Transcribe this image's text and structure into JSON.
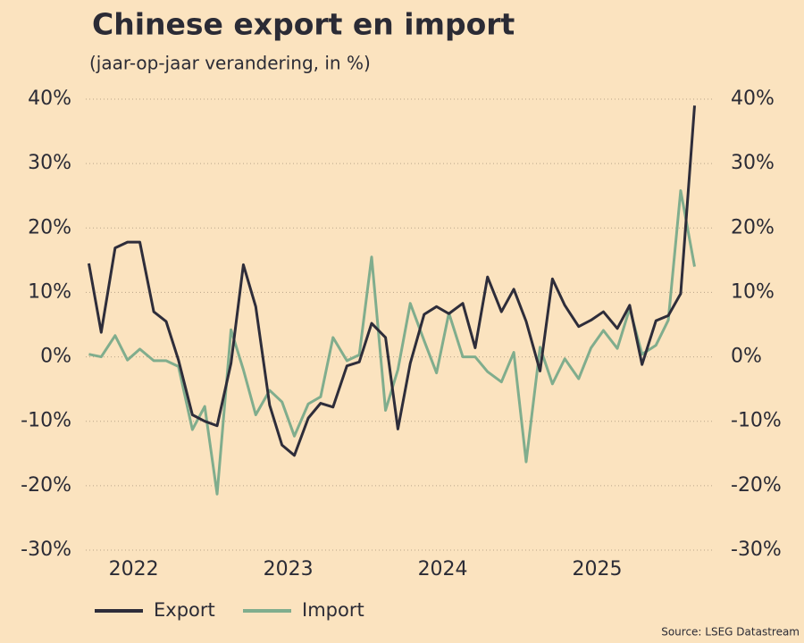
{
  "chart_data": {
    "type": "line",
    "title": "Chinese export en import",
    "subtitle": "(jaar-op-jaar verandering, in %)",
    "source": "Source: LSEG Datastream",
    "x": [
      2022.21,
      2022.29,
      2022.38,
      2022.46,
      2022.54,
      2022.63,
      2022.71,
      2022.79,
      2022.88,
      2022.96,
      2023.04,
      2023.13,
      2023.21,
      2023.29,
      2023.38,
      2023.46,
      2023.54,
      2023.63,
      2023.71,
      2023.79,
      2023.88,
      2023.96,
      2024.04,
      2024.13,
      2024.21,
      2024.29,
      2024.38,
      2024.46,
      2024.54,
      2024.63,
      2024.71,
      2024.79,
      2024.88,
      2024.96,
      2025.04,
      2025.13,
      2025.21,
      2025.29,
      2025.38,
      2025.46,
      2025.54,
      2025.63,
      2025.71,
      2025.79,
      2025.88,
      2025.96,
      2026.04,
      2026.13
    ],
    "series": [
      {
        "name": "Export",
        "color": "#2e2d3a",
        "values": [
          14.5,
          3.8,
          16.9,
          17.8,
          17.8,
          7,
          5.5,
          -0.5,
          -9,
          -10,
          -10.7,
          -1,
          14.3,
          7.8,
          -7.5,
          -13.7,
          -15.3,
          -9.5,
          -7.2,
          -7.8,
          -1.4,
          -0.8,
          5.2,
          3,
          -11.2,
          -1,
          6.6,
          7.8,
          6.7,
          8.3,
          1.4,
          12.4,
          7,
          10.5,
          5.5,
          -2.2,
          12.1,
          8,
          4.7,
          5.7,
          7,
          4.4,
          8,
          -1.2,
          5.6,
          6.4,
          9.8,
          39
        ]
      },
      {
        "name": "Import",
        "color": "#80ad8d",
        "values": [
          0.4,
          0,
          3.3,
          -0.5,
          1.2,
          -0.6,
          -0.6,
          -1.5,
          -11.3,
          -7.7,
          -21.3,
          4.2,
          -2,
          -9,
          -5.2,
          -7,
          -12.3,
          -7.3,
          -6.2,
          3,
          -0.6,
          0.3,
          15.5,
          -8.3,
          -2,
          8.3,
          2.5,
          -2.5,
          6.8,
          0,
          0,
          -2.3,
          -3.9,
          0.7,
          -16.3,
          1.5,
          -4.2,
          -0.3,
          -3.4,
          1.4,
          4.1,
          1.3,
          7.5,
          0.4,
          1.8,
          5.7,
          25.8,
          14
        ]
      }
    ],
    "xlim": [
      2022.19,
      2026.26
    ],
    "xticks": [
      {
        "value": 2022.5,
        "label": "2022"
      },
      {
        "value": 2023.5,
        "label": "2023"
      },
      {
        "value": 2024.5,
        "label": "2024"
      },
      {
        "value": 2025.5,
        "label": "2025"
      }
    ],
    "ylim": [
      -30,
      40
    ],
    "yticks": [
      {
        "value": -30,
        "label": "-30%"
      },
      {
        "value": -20,
        "label": "-20%"
      },
      {
        "value": -10,
        "label": "-10%"
      },
      {
        "value": 0,
        "label": "0%"
      },
      {
        "value": 10,
        "label": "10%"
      },
      {
        "value": 20,
        "label": "20%"
      },
      {
        "value": 30,
        "label": "30%"
      },
      {
        "value": 40,
        "label": "40%"
      }
    ],
    "y2lim": [
      -30,
      40
    ],
    "y2ticks": [
      {
        "value": -30,
        "label": "-30%"
      },
      {
        "value": -20,
        "label": "-20%"
      },
      {
        "value": -10,
        "label": "-10%"
      },
      {
        "value": 0,
        "label": "0%"
      },
      {
        "value": 10,
        "label": "10%"
      },
      {
        "value": 20,
        "label": "20%"
      },
      {
        "value": 30,
        "label": "30%"
      },
      {
        "value": 40,
        "label": "40%"
      }
    ],
    "grid": true,
    "legend": "bottom"
  }
}
